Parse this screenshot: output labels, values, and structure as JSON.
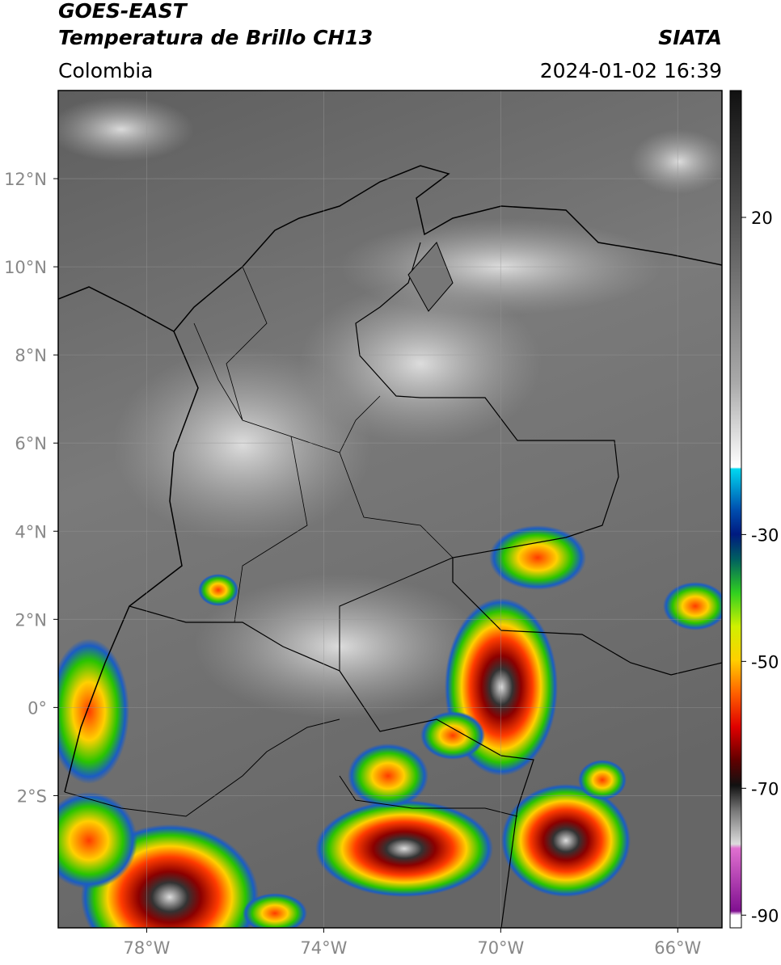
{
  "header": {
    "title": "GOES-EAST",
    "subtitle": "Temperatura de Brillo CH13",
    "source": "SIATA",
    "region": "Colombia",
    "datetime": "2024-01-02 16:39"
  },
  "map": {
    "xlim": [
      -80,
      -65
    ],
    "ylim": [
      -5,
      14
    ],
    "lon_ticks": [
      {
        "value": -78,
        "label": "78°W"
      },
      {
        "value": -74,
        "label": "74°W"
      },
      {
        "value": -70,
        "label": "70°W"
      },
      {
        "value": -66,
        "label": "66°W"
      }
    ],
    "lat_ticks": [
      {
        "value": 12,
        "label": "12°N"
      },
      {
        "value": 10,
        "label": "10°N"
      },
      {
        "value": 8,
        "label": "8°N"
      },
      {
        "value": 6,
        "label": "6°N"
      },
      {
        "value": 4,
        "label": "4°N"
      },
      {
        "value": 2,
        "label": "2°N"
      },
      {
        "value": 0,
        "label": "0°"
      },
      {
        "value": -2,
        "label": "2°S"
      }
    ],
    "grid": true
  },
  "colorbar": {
    "lim": [
      -92,
      40
    ],
    "ticks": [
      20,
      -30,
      -50,
      -70,
      -90
    ]
  }
}
